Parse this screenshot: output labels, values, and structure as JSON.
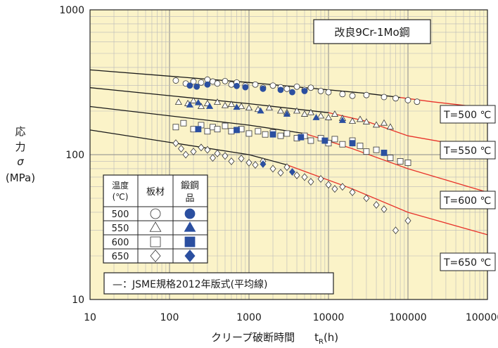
{
  "chart_data": {
    "type": "scatter",
    "title": "改良9Cr-1Mo鋼",
    "xlabel": "クリープ破断時間",
    "xlabel_symbol": "t",
    "xlabel_sub": "R",
    "xlabel_unit": "(h)",
    "ylabel_lines": [
      "応",
      "力",
      "σ",
      "(MPa)"
    ],
    "xscale": "log",
    "yscale": "log",
    "xlim": [
      10,
      1000000
    ],
    "ylim": [
      10,
      1000
    ],
    "xticks": [
      "10",
      "100",
      "1000",
      "10000",
      "100000",
      "1000000"
    ],
    "yticks": [
      "10",
      "100",
      "1000"
    ],
    "grid": true,
    "background": "#fbf3c8",
    "marker_color": "#2b4fa0",
    "curve_color": "#e8322a",
    "table": {
      "headers": [
        "温度(℃)",
        "板材",
        "鍛鋼品"
      ],
      "rows": [
        {
          "temp": "500",
          "plate": "circle-open-icon",
          "forging": "circle-filled-icon"
        },
        {
          "temp": "550",
          "plate": "triangle-open-icon",
          "forging": "triangle-filled-icon"
        },
        {
          "temp": "600",
          "plate": "square-open-icon",
          "forging": "square-filled-icon"
        },
        {
          "temp": "650",
          "plate": "diamond-open-icon",
          "forging": "diamond-filled-icon"
        }
      ]
    },
    "footnote": "—：JSME規格2012年版式(平均線)",
    "curves": [
      {
        "name": "T=500 ℃",
        "T": 500,
        "points": [
          [
            10,
            385
          ],
          [
            1000,
            315
          ],
          [
            30000,
            265
          ],
          [
            80000,
            248
          ],
          [
            200000,
            232
          ],
          [
            1000000,
            210
          ]
        ]
      },
      {
        "name": "T=550 ℃",
        "T": 550,
        "points": [
          [
            10,
            290
          ],
          [
            1000,
            225
          ],
          [
            10000,
            195
          ],
          [
            30000,
            170
          ],
          [
            100000,
            135
          ],
          [
            1000000,
            108
          ]
        ]
      },
      {
        "name": "T=600 ℃",
        "T": 600,
        "points": [
          [
            10,
            215
          ],
          [
            1000,
            160
          ],
          [
            5000,
            140
          ],
          [
            20000,
            110
          ],
          [
            100000,
            80
          ],
          [
            1000000,
            55
          ]
        ]
      },
      {
        "name": "T=650 ℃",
        "T": 650,
        "points": [
          [
            10,
            148
          ],
          [
            1000,
            100
          ],
          [
            3000,
            85
          ],
          [
            20000,
            58
          ],
          [
            100000,
            40
          ],
          [
            1000000,
            28
          ]
        ]
      }
    ],
    "series": [
      {
        "temp": 500,
        "product": "plate",
        "marker": "circle",
        "filled": false,
        "points": [
          [
            120,
            325
          ],
          [
            160,
            310
          ],
          [
            200,
            320
          ],
          [
            250,
            315
          ],
          [
            300,
            330
          ],
          [
            350,
            320
          ],
          [
            400,
            310
          ],
          [
            500,
            322
          ],
          [
            600,
            305
          ],
          [
            700,
            315
          ],
          [
            900,
            300
          ],
          [
            1200,
            305
          ],
          [
            1500,
            290
          ],
          [
            2000,
            300
          ],
          [
            2500,
            292
          ],
          [
            3000,
            285
          ],
          [
            4000,
            295
          ],
          [
            5000,
            280
          ],
          [
            6000,
            290
          ],
          [
            8000,
            275
          ],
          [
            10000,
            270
          ],
          [
            15000,
            262
          ],
          [
            20000,
            255
          ],
          [
            30000,
            258
          ],
          [
            50000,
            250
          ],
          [
            70000,
            245
          ],
          [
            100000,
            238
          ],
          [
            130000,
            232
          ]
        ]
      },
      {
        "temp": 500,
        "product": "forging",
        "marker": "circle",
        "filled": true,
        "points": [
          [
            180,
            300
          ],
          [
            220,
            295
          ],
          [
            300,
            305
          ],
          [
            700,
            298
          ],
          [
            900,
            292
          ],
          [
            1500,
            285
          ],
          [
            2500,
            280
          ],
          [
            3500,
            270
          ],
          [
            5000,
            275
          ]
        ]
      },
      {
        "temp": 550,
        "product": "plate",
        "marker": "triangle",
        "filled": false,
        "points": [
          [
            130,
            230
          ],
          [
            170,
            225
          ],
          [
            200,
            235
          ],
          [
            250,
            215
          ],
          [
            300,
            225
          ],
          [
            400,
            230
          ],
          [
            500,
            218
          ],
          [
            600,
            222
          ],
          [
            800,
            215
          ],
          [
            1000,
            210
          ],
          [
            1300,
            205
          ],
          [
            1800,
            210
          ],
          [
            2500,
            200
          ],
          [
            3000,
            195
          ],
          [
            4000,
            200
          ],
          [
            5000,
            190
          ],
          [
            6000,
            195
          ],
          [
            8000,
            185
          ],
          [
            10000,
            180
          ],
          [
            12000,
            190
          ],
          [
            15000,
            178
          ],
          [
            20000,
            170
          ],
          [
            25000,
            175
          ],
          [
            30000,
            168
          ],
          [
            40000,
            160
          ],
          [
            50000,
            165
          ],
          [
            60000,
            155
          ]
        ]
      },
      {
        "temp": 550,
        "product": "forging",
        "marker": "triangle",
        "filled": true,
        "points": [
          [
            180,
            220
          ],
          [
            230,
            228
          ],
          [
            320,
            215
          ],
          [
            700,
            212
          ],
          [
            1400,
            200
          ],
          [
            3000,
            190
          ],
          [
            7000,
            180
          ],
          [
            15000,
            172
          ]
        ]
      },
      {
        "temp": 600,
        "product": "plate",
        "marker": "square",
        "filled": false,
        "points": [
          [
            120,
            155
          ],
          [
            150,
            165
          ],
          [
            200,
            150
          ],
          [
            250,
            160
          ],
          [
            300,
            145
          ],
          [
            350,
            155
          ],
          [
            400,
            150
          ],
          [
            500,
            158
          ],
          [
            600,
            145
          ],
          [
            800,
            150
          ],
          [
            1000,
            140
          ],
          [
            1300,
            145
          ],
          [
            1600,
            138
          ],
          [
            2000,
            142
          ],
          [
            2500,
            135
          ],
          [
            3000,
            140
          ],
          [
            4000,
            130
          ],
          [
            5000,
            135
          ],
          [
            6000,
            125
          ],
          [
            8000,
            130
          ],
          [
            10000,
            120
          ],
          [
            12000,
            128
          ],
          [
            15000,
            118
          ],
          [
            20000,
            125
          ],
          [
            25000,
            115
          ],
          [
            30000,
            105
          ],
          [
            40000,
            108
          ],
          [
            60000,
            95
          ],
          [
            80000,
            90
          ],
          [
            100000,
            88
          ]
        ]
      },
      {
        "temp": 600,
        "product": "forging",
        "marker": "square",
        "filled": true,
        "points": [
          [
            230,
            150
          ],
          [
            700,
            148
          ],
          [
            2000,
            138
          ],
          [
            4500,
            132
          ],
          [
            9000,
            125
          ],
          [
            20000,
            120
          ],
          [
            50000,
            103
          ]
        ]
      },
      {
        "temp": 650,
        "product": "plate",
        "marker": "diamond",
        "filled": false,
        "points": [
          [
            120,
            120
          ],
          [
            140,
            110
          ],
          [
            160,
            100
          ],
          [
            200,
            105
          ],
          [
            250,
            112
          ],
          [
            300,
            108
          ],
          [
            350,
            95
          ],
          [
            400,
            102
          ],
          [
            500,
            98
          ],
          [
            600,
            90
          ],
          [
            800,
            94
          ],
          [
            1000,
            88
          ],
          [
            1200,
            85
          ],
          [
            1500,
            90
          ],
          [
            2000,
            80
          ],
          [
            2500,
            75
          ],
          [
            3000,
            82
          ],
          [
            4000,
            72
          ],
          [
            5000,
            70
          ],
          [
            6000,
            65
          ],
          [
            8000,
            68
          ],
          [
            10000,
            62
          ],
          [
            12000,
            58
          ],
          [
            15000,
            60
          ],
          [
            20000,
            55
          ],
          [
            30000,
            50
          ],
          [
            40000,
            45
          ],
          [
            50000,
            42
          ],
          [
            70000,
            30
          ],
          [
            100000,
            35
          ]
        ]
      },
      {
        "temp": 650,
        "product": "forging",
        "marker": "diamond",
        "filled": true,
        "points": [
          [
            1500,
            86
          ],
          [
            3500,
            76
          ]
        ]
      }
    ]
  }
}
